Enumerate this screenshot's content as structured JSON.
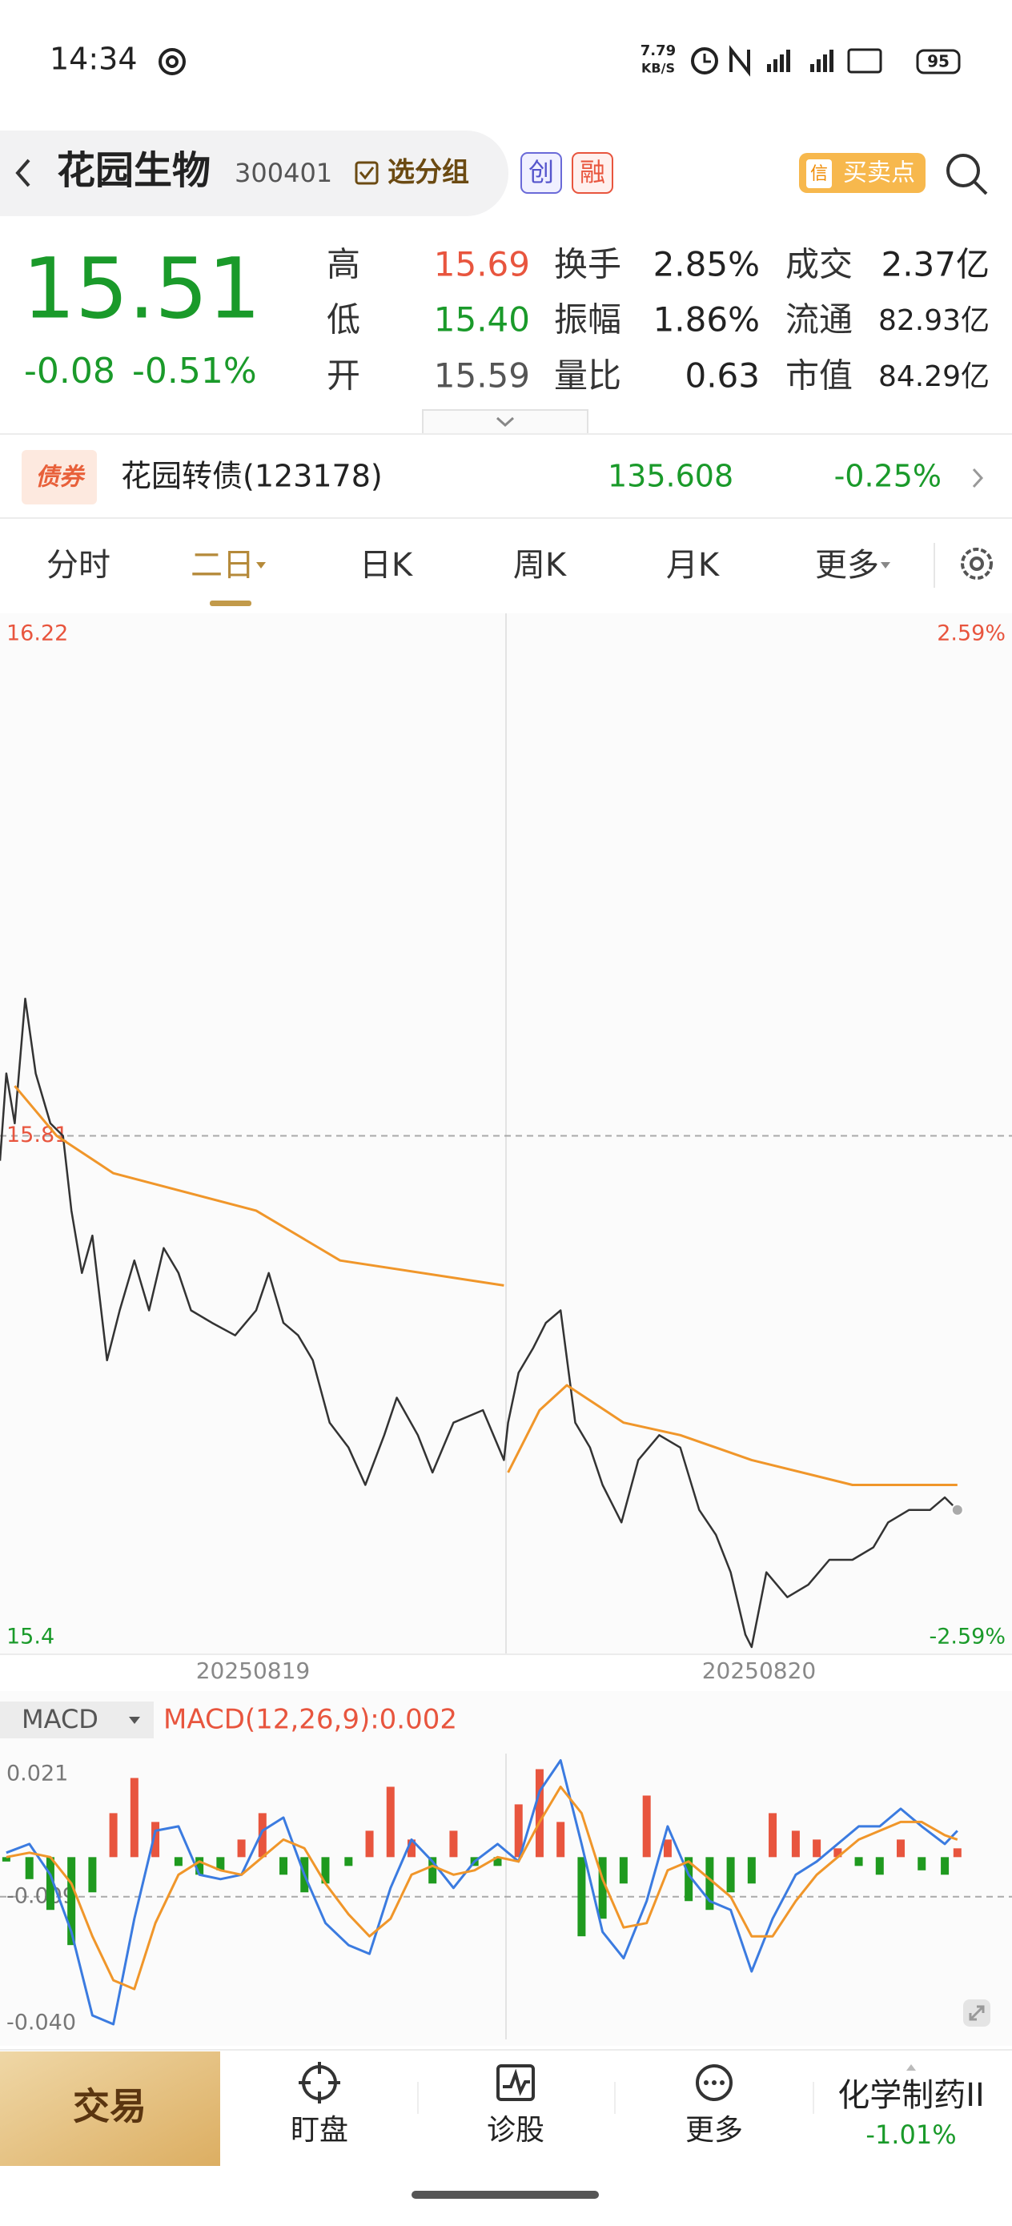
{
  "status_bar": {
    "time": "14:34",
    "net_speed_value": "7.79",
    "net_speed_unit": "KB/S",
    "battery": "95"
  },
  "header": {
    "name": "花园生物",
    "code": "300401",
    "group_button": "选分组",
    "badges": [
      "创",
      "融"
    ],
    "signal_icon": "信",
    "signal_button": "买卖点"
  },
  "quote": {
    "price": "15.51",
    "change": "-0.08",
    "change_pct": "-0.51%",
    "stats": [
      [
        {
          "label": "高",
          "value": "15.69"
        },
        {
          "label": "换手",
          "value": "2.85%"
        },
        {
          "label": "成交",
          "value": "2.37亿"
        }
      ],
      [
        {
          "label": "低",
          "value": "15.40"
        },
        {
          "label": "振幅",
          "value": "1.86%"
        },
        {
          "label": "流通",
          "value": "82.93亿"
        }
      ],
      [
        {
          "label": "开",
          "value": "15.59"
        },
        {
          "label": "量比",
          "value": "0.63"
        },
        {
          "label": "市值",
          "value": "84.29亿"
        }
      ]
    ]
  },
  "bond": {
    "badge": "债券",
    "name": "花园转债(123178)",
    "price": "135.608",
    "change_pct": "-0.25%"
  },
  "tabs": [
    "分时",
    "二日",
    "日K",
    "周K",
    "月K",
    "更多"
  ],
  "active_tab": 1,
  "chart_data": [
    {
      "type": "line",
      "categories": [
        "20250819",
        "20250820"
      ],
      "xlim": [
        0,
        482
      ],
      "ylim": [
        15.4,
        16.22
      ],
      "yticks": [
        16.22,
        15.81,
        15.4
      ],
      "y2lim": [
        -2.59,
        2.59
      ],
      "y2ticks": [
        {
          "value": 2.59,
          "label": "2.59%"
        },
        {
          "value": -2.59,
          "label": "-2.59%"
        }
      ],
      "series": [
        {
          "color": "#333333",
          "x": [
            0,
            3,
            7,
            12,
            17,
            24,
            30,
            34,
            39,
            44,
            51,
            57,
            64,
            71,
            78,
            85,
            91,
            101,
            112,
            122,
            128,
            135,
            142,
            149,
            157,
            166,
            174,
            183,
            189,
            199,
            206,
            216,
            230,
            240,
            242,
            247,
            254,
            260,
            267,
            274,
            281,
            287,
            296,
            304,
            314,
            324,
            333,
            341,
            348,
            355,
            358,
            365,
            375,
            385,
            395,
            406,
            416,
            423,
            433,
            443,
            450,
            456
          ],
          "values": [
            15.79,
            15.86,
            15.82,
            15.92,
            15.86,
            15.82,
            15.81,
            15.75,
            15.7,
            15.73,
            15.63,
            15.67,
            15.71,
            15.67,
            15.72,
            15.7,
            15.67,
            15.66,
            15.65,
            15.67,
            15.7,
            15.66,
            15.65,
            15.63,
            15.58,
            15.56,
            15.53,
            15.57,
            15.6,
            15.57,
            15.54,
            15.58,
            15.59,
            15.55,
            15.58,
            15.62,
            15.64,
            15.66,
            15.67,
            15.58,
            15.56,
            15.53,
            15.5,
            15.55,
            15.57,
            15.56,
            15.51,
            15.49,
            15.46,
            15.41,
            15.4,
            15.46,
            15.44,
            15.45,
            15.47,
            15.47,
            15.48,
            15.5,
            15.51,
            15.51,
            15.52,
            15.51
          ]
        },
        {
          "color": "#f0962a",
          "x": [
            7,
            27,
            54,
            122,
            162,
            240,
            241,
            242,
            257,
            270,
            297,
            324,
            358,
            406,
            456
          ],
          "values": [
            15.85,
            15.81,
            15.78,
            15.75,
            15.71,
            15.69,
            null,
            15.54,
            15.59,
            15.61,
            15.58,
            15.57,
            15.55,
            15.53,
            15.53
          ]
        }
      ]
    },
    {
      "type": "macd",
      "title": "MACD",
      "subtitle": "MACD(12,26,9):0.002",
      "xlim": [
        0,
        482
      ],
      "ylim": [
        -0.04,
        0.021
      ],
      "yticks": [
        0.021,
        -0.009,
        {
          "value": -0.04,
          "label": "-0.040"
        }
      ],
      "x": [
        3,
        14,
        24,
        34,
        44,
        54,
        64,
        74,
        85,
        95,
        105,
        115,
        125,
        135,
        145,
        155,
        166,
        176,
        186,
        196,
        206,
        216,
        226,
        237,
        247,
        257,
        267,
        277,
        287,
        297,
        308,
        318,
        328,
        338,
        348,
        358,
        368,
        379,
        389,
        399,
        409,
        419,
        429,
        439,
        450,
        456
      ],
      "series": [
        {
          "type": "bar",
          "up_color": "#e8553e",
          "down_color": "#1f9a1f",
          "values": [
            -0.001,
            -0.005,
            -0.012,
            -0.02,
            -0.008,
            0.01,
            0.018,
            0.008,
            -0.002,
            -0.004,
            -0.003,
            0.004,
            0.01,
            -0.004,
            -0.008,
            -0.006,
            -0.002,
            0.006,
            0.016,
            0.004,
            -0.006,
            0.006,
            -0.002,
            -0.002,
            0.012,
            0.02,
            0.008,
            -0.018,
            -0.014,
            -0.006,
            0.014,
            0.004,
            -0.01,
            -0.012,
            -0.008,
            -0.006,
            0.01,
            0.006,
            0.004,
            0.002,
            -0.002,
            -0.004,
            0.004,
            -0.003,
            -0.004,
            0.002
          ]
        },
        {
          "type": "line",
          "color": "#3b7be0",
          "values": [
            0.001,
            0.003,
            -0.004,
            -0.017,
            -0.036,
            -0.038,
            -0.014,
            0.006,
            0.007,
            -0.004,
            -0.005,
            -0.004,
            0.006,
            0.009,
            -0.004,
            -0.015,
            -0.02,
            -0.022,
            -0.007,
            0.004,
            -0.001,
            -0.007,
            -0.001,
            0.003,
            -0.001,
            0.015,
            0.022,
            0.003,
            -0.017,
            -0.023,
            -0.01,
            0.007,
            -0.004,
            -0.01,
            -0.012,
            -0.026,
            -0.014,
            -0.004,
            -0.001,
            0.003,
            0.007,
            0.007,
            0.011,
            0.007,
            0.003,
            0.006
          ]
        },
        {
          "type": "line",
          "color": "#f0962a",
          "values": [
            0.0,
            0.001,
            0.0,
            -0.006,
            -0.018,
            -0.028,
            -0.03,
            -0.015,
            -0.004,
            -0.001,
            -0.003,
            -0.004,
            0.0,
            0.004,
            0.002,
            -0.006,
            -0.013,
            -0.018,
            -0.014,
            -0.004,
            -0.002,
            -0.004,
            -0.003,
            0.0,
            -0.001,
            0.008,
            0.016,
            0.01,
            -0.005,
            -0.016,
            -0.015,
            -0.003,
            -0.001,
            -0.005,
            -0.009,
            -0.018,
            -0.018,
            -0.01,
            -0.004,
            0.0,
            0.004,
            0.006,
            0.008,
            0.008,
            0.005,
            0.004
          ]
        }
      ]
    }
  ],
  "bottom_nav": {
    "trade": "交易",
    "items": [
      "盯盘",
      "诊股",
      "更多"
    ],
    "sector": {
      "name": "化学制药II",
      "change": "-1.01%"
    }
  }
}
